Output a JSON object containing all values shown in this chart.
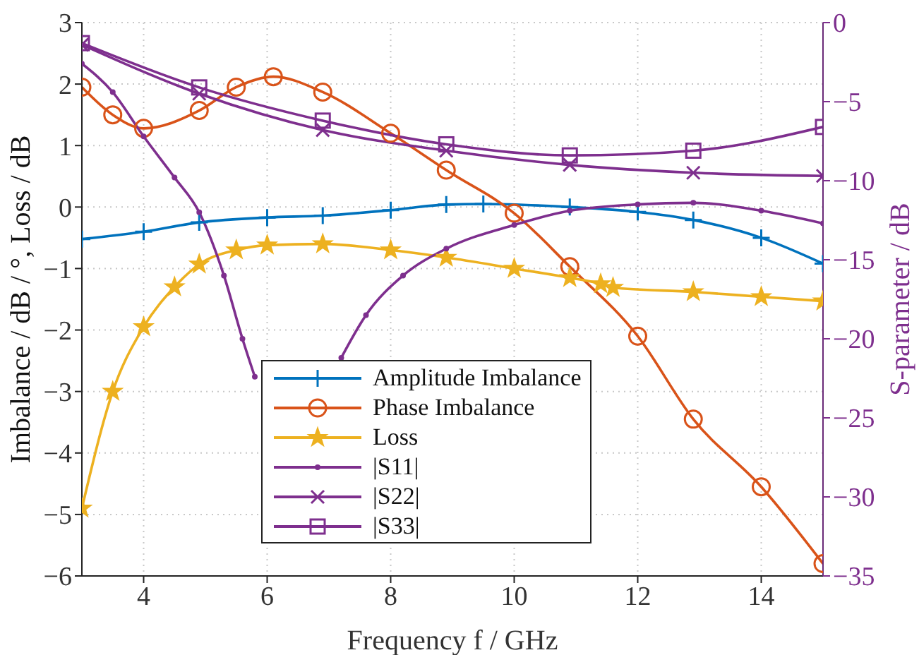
{
  "chart_data": {
    "type": "line",
    "xlabel": "Frequency f / GHz",
    "ylabel": "Imbalance / dB / °, Loss / dB",
    "y2label": "S-parameter / dB",
    "xlim": [
      3,
      15
    ],
    "xticks": [
      4,
      6,
      8,
      10,
      12,
      14
    ],
    "ylim": [
      -6,
      3
    ],
    "yticks": [
      -6,
      -5,
      -4,
      -3,
      -2,
      -1,
      0,
      1,
      2,
      3
    ],
    "y2lim": [
      -35,
      0
    ],
    "y2ticks": [
      -35,
      -30,
      -25,
      -20,
      -15,
      -10,
      -5,
      0
    ],
    "grid": true,
    "legend": "bottom",
    "line_style": "solid",
    "series": [
      {
        "name": "Amplitude Imbalance",
        "color": "#0072bd",
        "marker": "plus",
        "x": [
          3,
          4,
          4.9,
          6,
          6.9,
          8,
          8.9,
          9.5,
          10.9,
          12,
          12.9,
          14,
          15
        ],
        "values": [
          -0.52,
          -0.4,
          -0.25,
          -0.17,
          -0.14,
          -0.05,
          0.04,
          0.05,
          0.0,
          -0.08,
          -0.21,
          -0.5,
          -0.92
        ]
      },
      {
        "name": "Phase Imbalance",
        "color": "#d95319",
        "marker": "circle",
        "x": [
          3,
          3.5,
          4,
          4.9,
          5.5,
          6.1,
          6.9,
          8,
          8.9,
          10,
          10.9,
          12,
          12.9,
          14,
          15
        ],
        "values": [
          1.95,
          1.5,
          1.28,
          1.57,
          1.95,
          2.12,
          1.87,
          1.2,
          0.6,
          -0.1,
          -0.97,
          -2.1,
          -3.45,
          -4.55,
          -5.8
        ]
      },
      {
        "name": "Loss",
        "color": "#edb120",
        "marker": "star",
        "x": [
          3,
          3.5,
          4,
          4.5,
          4.9,
          5.5,
          6,
          6.9,
          8,
          8.9,
          10,
          10.9,
          11.4,
          11.6,
          12.9,
          14,
          15
        ],
        "values": [
          -4.9,
          -3.0,
          -1.95,
          -1.3,
          -0.93,
          -0.7,
          -0.62,
          -0.6,
          -0.7,
          -0.82,
          -1.0,
          -1.15,
          -1.25,
          -1.31,
          -1.38,
          -1.46,
          -1.53
        ]
      },
      {
        "name": "|S11|",
        "color": "#7e2f8e",
        "marker": "dot",
        "axis": "y2",
        "x": [
          3,
          3.5,
          4,
          4.5,
          4.9,
          5.3,
          5.6,
          5.8,
          6.5,
          7.2,
          7.6,
          8.2,
          8.9,
          10,
          10.9,
          12,
          12.9,
          14,
          15
        ],
        "values": [
          -2.6,
          -4.4,
          -7.2,
          -9.8,
          -12.0,
          -16,
          -20,
          -22.4,
          null,
          -21.2,
          -18.5,
          -16,
          -14.3,
          -12.8,
          -11.9,
          -11.5,
          -11.4,
          -11.9,
          -12.7
        ]
      },
      {
        "name": "|S22|",
        "color": "#7e2f8e",
        "marker": "cross",
        "axis": "y2",
        "x": [
          3,
          4.9,
          6.9,
          8.9,
          10.9,
          12.9,
          15
        ],
        "values": [
          -1.4,
          -4.5,
          -6.8,
          -8.1,
          -9.0,
          -9.5,
          -9.7
        ]
      },
      {
        "name": "|S33|",
        "color": "#7e2f8e",
        "marker": "square",
        "axis": "y2",
        "x": [
          3,
          4.9,
          6.9,
          8.9,
          10.9,
          12.9,
          15
        ],
        "values": [
          -1.3,
          -4.1,
          -6.2,
          -7.7,
          -8.4,
          -8.1,
          -6.6
        ]
      }
    ]
  }
}
